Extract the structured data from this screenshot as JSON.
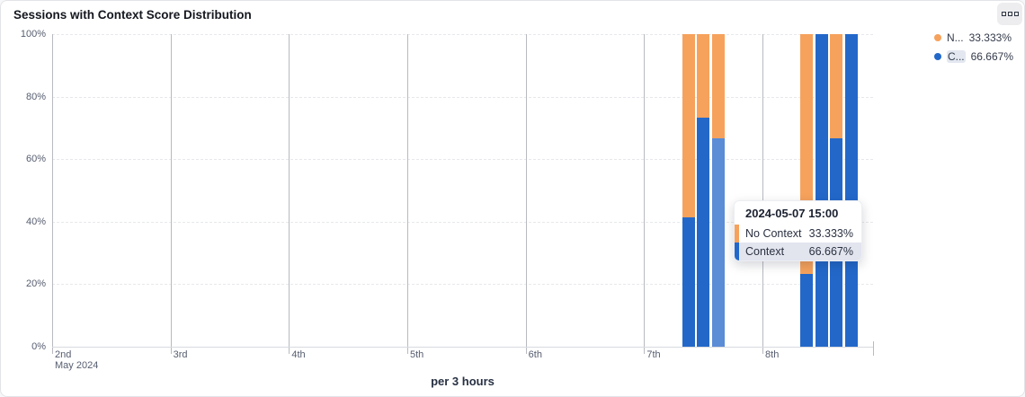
{
  "card": {
    "title": "Sessions with Context Score Distribution"
  },
  "chart_data": {
    "type": "bar",
    "stacked": true,
    "percent": true,
    "title": "Sessions with Context Score Distribution",
    "xlabel": "per 3 hours",
    "x_month_label": "May 2024",
    "xticks": [
      "2nd",
      "3rd",
      "4th",
      "5th",
      "6th",
      "7th",
      "8th"
    ],
    "yticks": [
      "0%",
      "20%",
      "40%",
      "60%",
      "80%",
      "100%"
    ],
    "ylim": [
      0,
      100
    ],
    "grid": true,
    "legend_position": "top-right",
    "series_names": [
      "No Context",
      "Context"
    ],
    "colors": {
      "no_context": "#f6a25c",
      "context": "#2368c9",
      "context_hover": "#5b8cd6"
    },
    "bars": [
      {
        "time": "2024-05-07 09:00",
        "context": 41.4,
        "no_context": 58.6
      },
      {
        "time": "2024-05-07 12:00",
        "context": 73.333,
        "no_context": 26.667
      },
      {
        "time": "2024-05-07 15:00",
        "context": 66.667,
        "no_context": 33.333,
        "hovered": true
      },
      {
        "time": "2024-05-08 09:00",
        "context": 23.333,
        "no_context": 76.667
      },
      {
        "time": "2024-05-08 12:00",
        "context": 100,
        "no_context": 0
      },
      {
        "time": "2024-05-08 15:00",
        "context": 66.667,
        "no_context": 33.333
      },
      {
        "time": "2024-05-08 18:00",
        "context": 100,
        "no_context": 0
      }
    ],
    "legend": [
      {
        "label": "N...",
        "value": "33.333%",
        "color": "#f6a25c"
      },
      {
        "label": "C...",
        "value": "66.667%",
        "color": "#2368c9",
        "highlighted": true
      }
    ]
  },
  "tooltip": {
    "title": "2024-05-07 15:00",
    "rows": [
      {
        "label": "No Context",
        "value": "33.333%",
        "series_color": "#f6a25c"
      },
      {
        "label": "Context",
        "value": "66.667%",
        "series_color": "#2368c9",
        "highlighted": true
      }
    ]
  }
}
